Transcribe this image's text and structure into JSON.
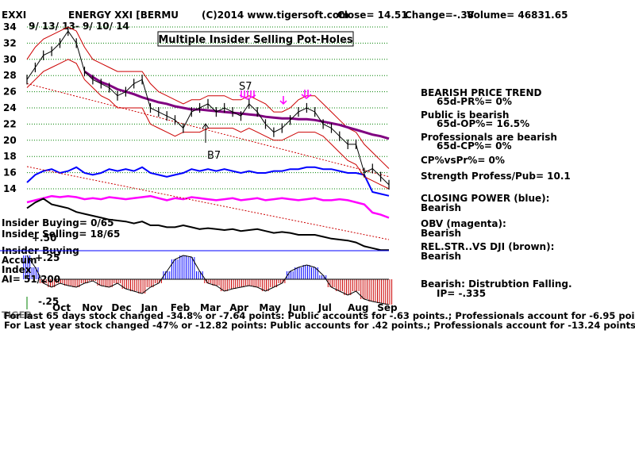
{
  "header": {
    "ticker": "EXXI",
    "company": "ENERGY XXI [BERMU",
    "copyright": "(C)2014 www.tigersoft.com",
    "close": "Close=  14.51",
    "change": "Change=-.38",
    "volume": "Volume=  46831.65",
    "date_range": "9/ 13/ 13- 9/ 10/ 14"
  },
  "title": "Multiple Insider Selling Pot-Holes",
  "markers": {
    "s7": "S7",
    "b7": "B7"
  },
  "insider": {
    "buying": "Insider Buying= 0/65",
    "selling": "Insider Selling= 18/65",
    "accum_title_1": "Insider Buying",
    "accum_title_2": "Accum",
    "accum_title_3": "Index",
    "ai": "AI= 51/200",
    "tick_p50": "+.50",
    "tick_p25": "+.25",
    "tick_m25": "-.25"
  },
  "right_panel": {
    "trend_title": "BEARISH PRICE TREND",
    "trend_pr": "65d-PR%= 0%",
    "public_title": "Public is bearish",
    "public_op": "65d-OP%= 16.5%",
    "prof_title": "Professionals are bearish",
    "prof_cp": "65d-CP%= 0%",
    "cp_vs_pr": "CP%vsPr%=  0%",
    "strength": "Strength Profess/Pub= 10.1",
    "closing_power": "CLOSING POWER (blue):",
    "closing_power_val": "Bearish",
    "obv": "OBV (magenta):",
    "obv_val": "Bearish",
    "relstr": "REL.STR..VS DJI (brown):",
    "relstr_val": "Bearish",
    "distribution": "Bearish: Distrubtion Falling.",
    "ip": "IP= -.335"
  },
  "footer": {
    "line1": "For last 65 days stock changed -34.8% or -7.64 points:  Public accounts for -.63 points.;  Professionals account for -6.95 points.",
    "line2": "For Last year stock changed -47% or -12.82 points:  Public accounts for  .42 points.;  Professionals account for -13.24 points.",
    "overlap": "TIGER"
  },
  "colors": {
    "price": "#000000",
    "band": "#cc0000",
    "ma": "#800080",
    "closing_power": "#0000ff",
    "obv": "#ff00ff",
    "rel_str": "#000000",
    "accum_pos": "#0000ff",
    "accum_neg": "#cc0000",
    "grid": "#008000"
  },
  "chart_data": {
    "type": "line",
    "ylim": [
      14,
      34
    ],
    "y_ticks": [
      14,
      16,
      18,
      20,
      22,
      24,
      26,
      28,
      30,
      32,
      34
    ],
    "months": [
      "Oct",
      "Nov",
      "Dec",
      "Jan",
      "Feb",
      "Mar",
      "Apr",
      "May",
      "Jun",
      "Jul",
      "Aug",
      "Sep"
    ],
    "price": [
      27.5,
      29,
      30.5,
      31,
      32,
      33.5,
      32,
      28.5,
      27.5,
      27,
      26.5,
      25.5,
      26,
      27,
      27.5,
      24,
      23.5,
      23,
      22.5,
      21.5,
      23.5,
      24,
      24.5,
      23.5,
      24,
      23.5,
      23,
      24.5,
      23.5,
      22,
      21,
      21.5,
      22.5,
      23.5,
      24,
      23.5,
      22,
      21.5,
      20.5,
      19.5,
      19.5,
      16,
      16.5,
      15.5,
      14.5
    ],
    "ma": [
      null,
      null,
      null,
      null,
      null,
      null,
      null,
      28.5,
      27.8,
      27.2,
      26.8,
      26.3,
      26,
      25.7,
      25.3,
      25,
      24.7,
      24.5,
      24.2,
      24,
      23.8,
      23.8,
      23.7,
      23.6,
      23.5,
      23.4,
      23.3,
      23.2,
      23.1,
      22.9,
      22.8,
      22.7,
      22.7,
      22.6,
      22.6,
      22.5,
      22.3,
      22.1,
      21.9,
      21.6,
      21.3,
      21,
      20.7,
      20.5,
      20.2
    ],
    "upper_band": [
      30,
      31.5,
      32.5,
      33,
      33.5,
      34,
      33.5,
      31.5,
      30,
      29.5,
      29,
      28.5,
      28.5,
      28.5,
      28.5,
      27,
      26,
      25.5,
      25,
      24.5,
      25,
      25,
      25.5,
      25.5,
      25.5,
      25,
      25,
      25.5,
      25,
      24.5,
      23.5,
      23.5,
      24,
      25,
      25.5,
      25.5,
      24.5,
      23.5,
      22.5,
      21.5,
      21,
      19.5,
      18.5,
      17.5,
      16.5
    ],
    "lower_band": [
      26.5,
      27.5,
      28.5,
      29,
      29.5,
      30,
      29.5,
      27.5,
      26.5,
      25.5,
      25,
      24,
      24,
      24,
      24,
      22,
      21.5,
      21,
      20.5,
      21,
      21,
      21,
      21.5,
      21.5,
      21.5,
      21.5,
      21,
      21.5,
      21,
      20.5,
      20,
      20,
      20.5,
      21,
      21,
      21,
      20.5,
      19.5,
      18.5,
      17.5,
      17,
      15.5,
      15,
      14.5,
      14
    ],
    "closing_power": [
      50,
      42,
      38,
      36,
      40,
      38,
      34,
      40,
      42,
      40,
      36,
      38,
      36,
      38,
      34,
      40,
      42,
      44,
      42,
      40,
      36,
      38,
      36,
      38,
      36,
      38,
      40,
      38,
      40,
      40,
      38,
      38,
      36,
      36,
      34,
      34,
      36,
      36,
      38,
      40,
      40,
      42,
      60,
      62,
      64
    ],
    "obv": [
      50,
      48,
      46,
      44,
      45,
      44,
      45,
      47,
      46,
      47,
      45,
      46,
      47,
      46,
      45,
      44,
      46,
      48,
      46,
      47,
      45,
      46,
      47,
      48,
      47,
      46,
      48,
      47,
      46,
      48,
      47,
      46,
      47,
      48,
      47,
      46,
      48,
      48,
      47,
      48,
      50,
      52,
      60,
      62,
      65
    ],
    "rel_str": [
      52,
      46,
      42,
      48,
      50,
      52,
      56,
      58,
      60,
      62,
      64,
      65,
      66,
      68,
      66,
      70,
      70,
      72,
      72,
      70,
      72,
      74,
      73,
      74,
      75,
      74,
      76,
      75,
      74,
      76,
      78,
      77,
      78,
      80,
      80,
      80,
      82,
      84,
      85,
      86,
      88,
      92,
      94,
      96,
      96
    ],
    "accum_index": [
      0.3,
      0.15,
      -0.05,
      -0.1,
      -0.05,
      -0.08,
      -0.1,
      -0.05,
      -0.02,
      -0.08,
      -0.1,
      -0.05,
      -0.12,
      -0.15,
      -0.18,
      -0.1,
      -0.05,
      0.1,
      0.25,
      0.3,
      0.28,
      0.1,
      -0.05,
      -0.08,
      -0.15,
      -0.12,
      -0.1,
      -0.08,
      -0.1,
      -0.15,
      -0.1,
      -0.05,
      0.1,
      0.15,
      0.18,
      0.15,
      0.05,
      -0.1,
      -0.15,
      -0.2,
      -0.15,
      -0.25,
      -0.28,
      -0.3,
      -0.32
    ]
  }
}
